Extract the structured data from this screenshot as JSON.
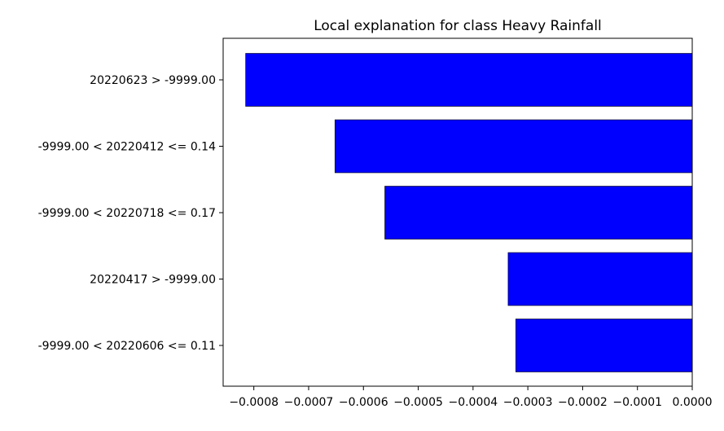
{
  "chart_data": {
    "type": "bar",
    "orientation": "horizontal",
    "title": "Local explanation for class Heavy Rainfall",
    "xlabel": "",
    "ylabel": "",
    "categories": [
      "20220623 > -9999.00",
      "-9999.00 < 20220412 <= 0.14",
      "-9999.00 < 20220718 <= 0.17",
      "20220417 > -9999.00",
      "-9999.00 < 20220606 <= 0.11"
    ],
    "values": [
      -0.000815,
      -0.000652,
      -0.000561,
      -0.000336,
      -0.000322
    ],
    "xlim": [
      -0.000856,
      0.0
    ],
    "xticks": [
      -0.0008,
      -0.0007,
      -0.0006,
      -0.0005,
      -0.0004,
      -0.0003,
      -0.0002,
      -0.0001,
      0.0
    ],
    "xtick_labels": [
      "−0.0008",
      "−0.0007",
      "−0.0006",
      "−0.0005",
      "−0.0004",
      "−0.0003",
      "−0.0002",
      "−0.0001",
      "0.0000"
    ],
    "bar_color": "#0000ff",
    "grid": false
  }
}
